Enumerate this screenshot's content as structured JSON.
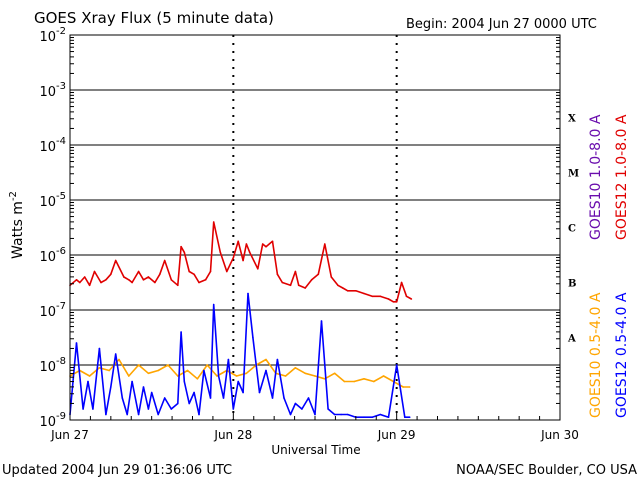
{
  "page": {
    "title": "GOES Xray Flux (5 minute data)",
    "begin": "Begin:  2004 Jun 27 0000 UTC",
    "updated": "Updated 2004 Jun 29 01:36:06 UTC",
    "credit": "NOAA/SEC Boulder, CO USA"
  },
  "colors": {
    "goes10_long": "#6a0dad",
    "goes12_long": "#e00000",
    "goes10_short": "#ffa500",
    "goes12_short": "#0000ff",
    "axis": "#000000"
  },
  "chart_data": {
    "type": "line",
    "title": "GOES Xray Flux (5 minute data)",
    "xlabel": "Universal Time",
    "ylabel": "Watts m",
    "ylabel_sup": "-2",
    "y_scale": "log",
    "ylim": [
      1e-09,
      0.01
    ],
    "xlim_days": [
      0,
      3
    ],
    "x_ticks": [
      {
        "day": 0,
        "label": "Jun 27"
      },
      {
        "day": 1,
        "label": "Jun 28"
      },
      {
        "day": 2,
        "label": "Jun 29"
      },
      {
        "day": 3,
        "label": "Jun 30"
      }
    ],
    "y_ticks": [
      {
        "exp": -2,
        "label_base": "10",
        "label_exp": "-2"
      },
      {
        "exp": -3,
        "label_base": "10",
        "label_exp": "-3"
      },
      {
        "exp": -4,
        "label_base": "10",
        "label_exp": "-4"
      },
      {
        "exp": -5,
        "label_base": "10",
        "label_exp": "-5"
      },
      {
        "exp": -6,
        "label_base": "10",
        "label_exp": "-6"
      },
      {
        "exp": -7,
        "label_base": "10",
        "label_exp": "-7"
      },
      {
        "exp": -8,
        "label_base": "10",
        "label_exp": "-8"
      },
      {
        "exp": -9,
        "label_base": "10",
        "label_exp": "-9"
      }
    ],
    "flare_classes": [
      {
        "label": "X",
        "exp": -3.5
      },
      {
        "label": "M",
        "exp": -4.5
      },
      {
        "label": "C",
        "exp": -5.5
      },
      {
        "label": "B",
        "exp": -6.5
      },
      {
        "label": "A",
        "exp": -7.5
      }
    ],
    "legend": [
      {
        "name": "GOES10 1.0-8.0 A",
        "color": "#6a0dad",
        "group": "long"
      },
      {
        "name": "GOES12 1.0-8.0 A",
        "color": "#e00000",
        "group": "long"
      },
      {
        "name": "GOES10 0.5-4.0 A",
        "color": "#ffa500",
        "group": "short"
      },
      {
        "name": "GOES12 0.5-4.0 A",
        "color": "#0000ff",
        "group": "short"
      }
    ],
    "series": [
      {
        "name": "GOES12 1.0-8.0 A",
        "color": "#e00000",
        "x": [
          0.0,
          0.04,
          0.06,
          0.09,
          0.12,
          0.15,
          0.19,
          0.22,
          0.25,
          0.28,
          0.33,
          0.36,
          0.38,
          0.42,
          0.45,
          0.48,
          0.52,
          0.55,
          0.58,
          0.62,
          0.66,
          0.68,
          0.7,
          0.73,
          0.76,
          0.79,
          0.83,
          0.86,
          0.88,
          0.92,
          0.96,
          1.0,
          1.03,
          1.06,
          1.08,
          1.1,
          1.15,
          1.18,
          1.2,
          1.24,
          1.27,
          1.3,
          1.35,
          1.38,
          1.4,
          1.44,
          1.48,
          1.52,
          1.56,
          1.6,
          1.64,
          1.67,
          1.7,
          1.75,
          1.8,
          1.85,
          1.9,
          1.95,
          1.98,
          2.0,
          2.03,
          2.06,
          2.09
        ],
        "y_exp": [
          -6.55,
          -6.45,
          -6.5,
          -6.4,
          -6.55,
          -6.3,
          -6.5,
          -6.45,
          -6.35,
          -6.1,
          -6.4,
          -6.45,
          -6.5,
          -6.3,
          -6.45,
          -6.4,
          -6.5,
          -6.35,
          -6.1,
          -6.45,
          -6.55,
          -5.85,
          -5.95,
          -6.3,
          -6.35,
          -6.5,
          -6.45,
          -6.3,
          -5.4,
          -5.95,
          -6.3,
          -6.05,
          -5.75,
          -6.1,
          -5.8,
          -5.95,
          -6.25,
          -5.8,
          -5.85,
          -5.75,
          -6.35,
          -6.5,
          -6.55,
          -6.3,
          -6.55,
          -6.6,
          -6.45,
          -6.35,
          -5.8,
          -6.4,
          -6.55,
          -6.6,
          -6.65,
          -6.65,
          -6.7,
          -6.75,
          -6.75,
          -6.8,
          -6.85,
          -6.85,
          -6.5,
          -6.75,
          -6.8
        ]
      },
      {
        "name": "GOES10 0.5-4.0 A",
        "color": "#ffa500",
        "x": [
          0.0,
          0.06,
          0.12,
          0.18,
          0.24,
          0.3,
          0.36,
          0.42,
          0.48,
          0.54,
          0.6,
          0.66,
          0.72,
          0.78,
          0.84,
          0.9,
          0.96,
          1.02,
          1.08,
          1.14,
          1.2,
          1.26,
          1.32,
          1.38,
          1.44,
          1.5,
          1.56,
          1.62,
          1.68,
          1.74,
          1.8,
          1.86,
          1.92,
          1.98,
          2.04,
          2.08
        ],
        "y_exp": [
          -8.2,
          -8.1,
          -8.2,
          -8.05,
          -8.1,
          -7.9,
          -8.2,
          -8.0,
          -8.15,
          -8.1,
          -8.0,
          -8.2,
          -8.1,
          -8.25,
          -8.0,
          -8.2,
          -8.1,
          -8.2,
          -8.15,
          -8.0,
          -7.9,
          -8.15,
          -8.2,
          -8.05,
          -8.15,
          -8.2,
          -8.25,
          -8.15,
          -8.3,
          -8.3,
          -8.25,
          -8.3,
          -8.2,
          -8.3,
          -8.4,
          -8.4
        ]
      },
      {
        "name": "GOES12 0.5-4.0 A",
        "color": "#0000ff",
        "x": [
          0.0,
          0.04,
          0.08,
          0.11,
          0.14,
          0.18,
          0.22,
          0.25,
          0.28,
          0.32,
          0.35,
          0.38,
          0.42,
          0.45,
          0.48,
          0.5,
          0.54,
          0.58,
          0.62,
          0.66,
          0.68,
          0.7,
          0.73,
          0.76,
          0.79,
          0.82,
          0.86,
          0.88,
          0.91,
          0.94,
          0.97,
          1.0,
          1.03,
          1.06,
          1.09,
          1.12,
          1.16,
          1.2,
          1.24,
          1.27,
          1.31,
          1.35,
          1.38,
          1.42,
          1.46,
          1.5,
          1.54,
          1.58,
          1.62,
          1.66,
          1.7,
          1.75,
          1.8,
          1.85,
          1.9,
          1.95,
          2.0,
          2.05,
          2.08
        ],
        "y_exp": [
          -8.9,
          -7.6,
          -8.8,
          -8.3,
          -8.8,
          -7.7,
          -8.9,
          -8.4,
          -7.8,
          -8.6,
          -8.9,
          -8.3,
          -8.9,
          -8.4,
          -8.8,
          -8.5,
          -8.9,
          -8.6,
          -8.8,
          -8.7,
          -7.4,
          -8.3,
          -8.7,
          -8.5,
          -8.9,
          -8.1,
          -8.6,
          -6.9,
          -8.2,
          -8.6,
          -7.9,
          -8.8,
          -8.3,
          -8.5,
          -6.7,
          -7.5,
          -8.5,
          -8.1,
          -8.6,
          -7.9,
          -8.6,
          -8.9,
          -8.7,
          -8.8,
          -8.6,
          -8.9,
          -7.2,
          -8.8,
          -8.9,
          -8.9,
          -8.9,
          -8.95,
          -8.95,
          -8.95,
          -8.9,
          -8.95,
          -8.0,
          -8.95,
          -8.95
        ]
      }
    ]
  }
}
